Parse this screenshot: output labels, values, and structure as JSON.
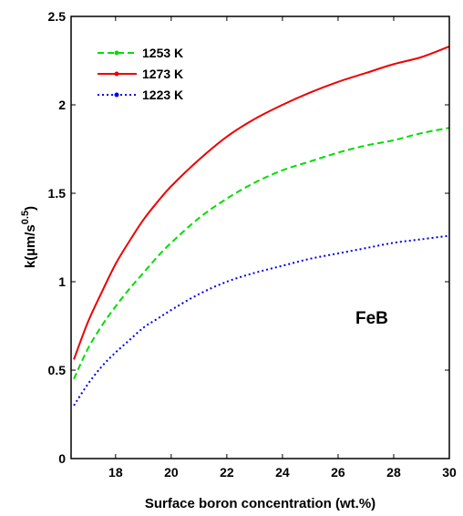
{
  "chart_data": {
    "type": "line",
    "xlabel": "Surface boron concentration (wt.%)",
    "ylabel_main": "k(µm/s",
    "ylabel_exp": "0.5",
    "ylabel_close": ")",
    "xlim": [
      16.4,
      30
    ],
    "ylim": [
      0,
      2.5
    ],
    "xticks": [
      "18",
      "20",
      "22",
      "24",
      "26",
      "28",
      "30"
    ],
    "yticks": [
      "0",
      "0.5",
      "1",
      "1.5",
      "2",
      "2.5"
    ],
    "grid": false,
    "legend_position": "top-left",
    "annotation": "FeB",
    "x": [
      16.5,
      17,
      17.5,
      18,
      18.5,
      19,
      19.5,
      20,
      21,
      22,
      23,
      24,
      25,
      26,
      27,
      28,
      29,
      30
    ],
    "series": [
      {
        "name": "1253 K",
        "color": "#00dd00",
        "style": "dashed",
        "values": [
          0.45,
          0.62,
          0.75,
          0.86,
          0.96,
          1.05,
          1.14,
          1.22,
          1.36,
          1.47,
          1.56,
          1.63,
          1.68,
          1.73,
          1.77,
          1.8,
          1.84,
          1.87
        ]
      },
      {
        "name": "1273 K",
        "color": "#ee0000",
        "style": "solid",
        "values": [
          0.56,
          0.77,
          0.94,
          1.1,
          1.23,
          1.35,
          1.45,
          1.54,
          1.69,
          1.82,
          1.92,
          2.0,
          2.07,
          2.13,
          2.18,
          2.23,
          2.27,
          2.33
        ]
      },
      {
        "name": "1223 K",
        "color": "#0000ee",
        "style": "dotted",
        "values": [
          0.3,
          0.42,
          0.52,
          0.6,
          0.67,
          0.74,
          0.79,
          0.84,
          0.93,
          1.0,
          1.05,
          1.09,
          1.13,
          1.16,
          1.19,
          1.22,
          1.24,
          1.26
        ]
      }
    ]
  }
}
